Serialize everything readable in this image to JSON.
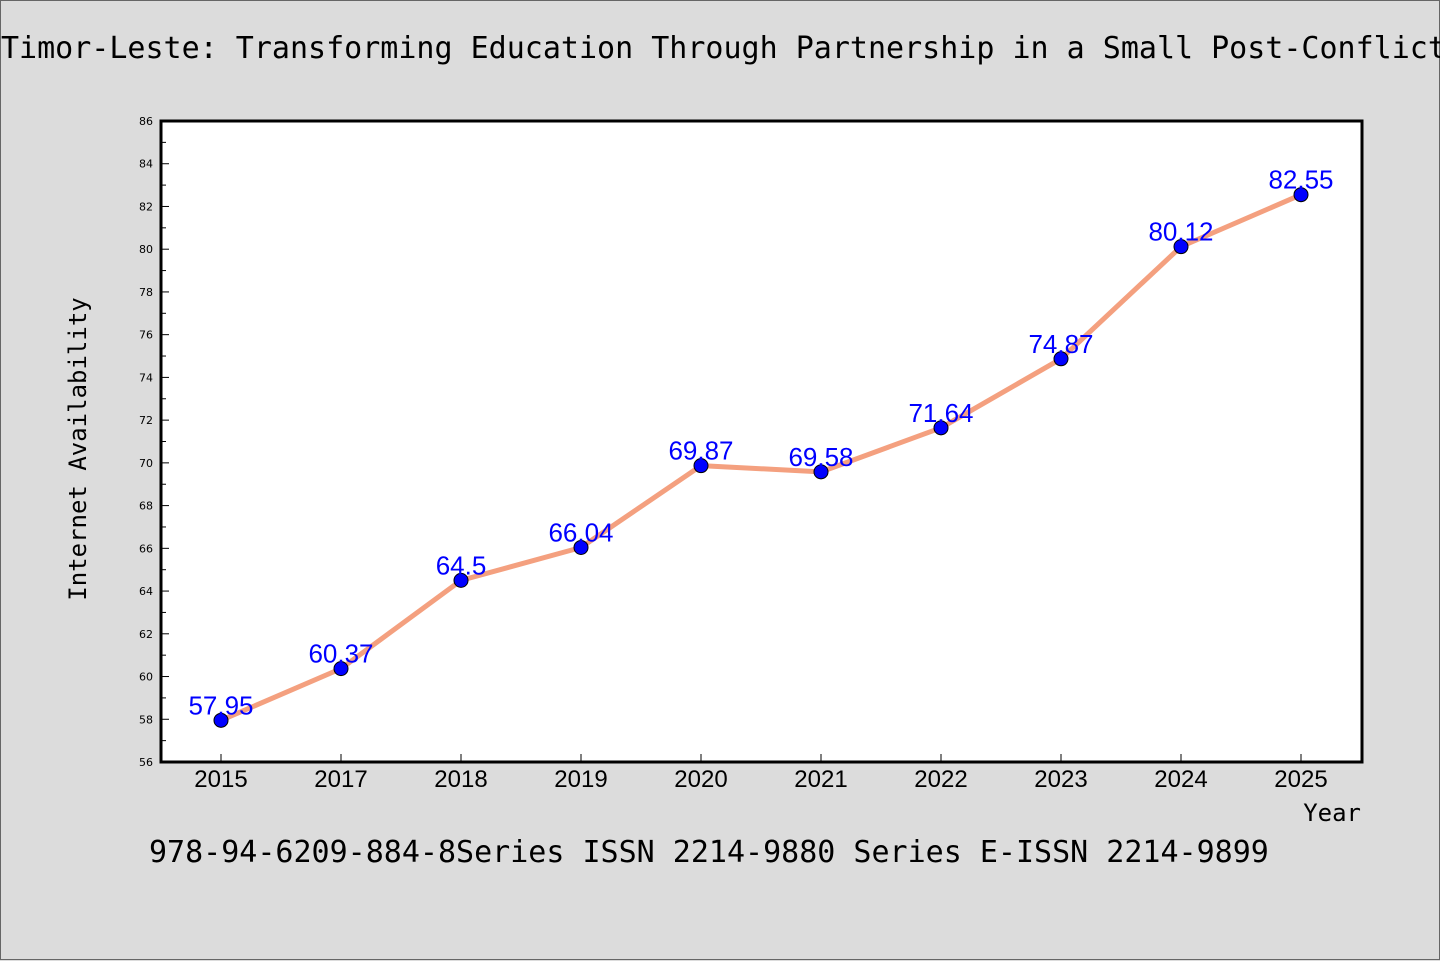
{
  "chart_title": "Timor-Leste: Transforming Education Through Partnership in a Small Post-Conflict",
  "footer": "978-94-6209-884-8Series ISSN 2214-9880 Series E-ISSN 2214-9899",
  "colors": {
    "background": "#dcdcdc",
    "plot_background": "#ffffff",
    "line": "#f4a07f",
    "marker": "#0000ff",
    "data_label": "#0000ff"
  },
  "chart_data": {
    "type": "line",
    "title": "Timor-Leste: Transforming Education Through Partnership in a Small Post-Conflict",
    "xlabel": "Year",
    "ylabel": "Internet Availability",
    "categories": [
      "2015",
      "2017",
      "2018",
      "2019",
      "2020",
      "2021",
      "2022",
      "2023",
      "2024",
      "2025"
    ],
    "series": [
      {
        "values": [
          57.95,
          60.37,
          64.5,
          66.04,
          69.87,
          69.58,
          71.64,
          74.87,
          80.12,
          82.55
        ],
        "labels": [
          "57.95",
          "60.37",
          "64.5",
          "66.04",
          "69.87",
          "69.58",
          "71.64",
          "74.87",
          "80.12",
          "82.55"
        ]
      }
    ],
    "ylim": [
      56,
      86
    ],
    "yticks": [
      "56",
      "58",
      "60",
      "62",
      "64",
      "66",
      "68",
      "70",
      "72",
      "74",
      "76",
      "78",
      "80",
      "82",
      "84",
      "86"
    ],
    "grid": false,
    "legend": "none"
  }
}
